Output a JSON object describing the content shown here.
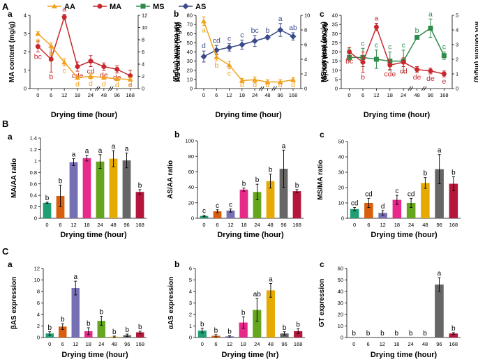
{
  "panel_labels": [
    "A",
    "B",
    "C"
  ],
  "colors": {
    "AA": "#f0a21e",
    "MA": "#c8282d",
    "MS": "#2e8b4a",
    "AS": "#3b4a8c"
  },
  "legend": [
    {
      "key": "AA",
      "label": "AA",
      "marker": "triangle"
    },
    {
      "key": "MA",
      "label": "MA",
      "marker": "circle"
    },
    {
      "key": "MS",
      "label": "MS",
      "marker": "square"
    },
    {
      "key": "AS",
      "label": "AS",
      "marker": "diamond"
    }
  ],
  "chart_data": [
    {
      "id": "A-a",
      "type": "line",
      "sub": "a",
      "x": [
        "0",
        "6",
        "12",
        "18",
        "24",
        "48",
        "96",
        "168"
      ],
      "xlabel": "Drying time (hour)",
      "ylabel": "MA content (mg/g)",
      "ylim": [
        0,
        4
      ],
      "yticks": [
        "0",
        "1",
        "2",
        "3",
        "4"
      ],
      "ylabel2": "AA content (mg/g)",
      "ylim2": [
        0,
        12
      ],
      "yticks2": [
        "0",
        "2",
        "4",
        "6",
        "8",
        "10",
        "12"
      ],
      "series": [
        {
          "name": "MA",
          "axis": "left",
          "values": [
            2.3,
            1.6,
            3.9,
            1.2,
            1.5,
            1.2,
            1.05,
            0.7
          ],
          "err": [
            0.3,
            0.7,
            0.15,
            0.25,
            0.3,
            0.2,
            0.2,
            0.3
          ],
          "labels": [
            "bc",
            "b",
            "a",
            "cde",
            "cd",
            "de",
            "de",
            "e"
          ]
        },
        {
          "name": "AA",
          "axis": "right",
          "values": [
            9.0,
            7.0,
            4.3,
            1.8,
            2.0,
            1.8,
            1.6,
            1.5
          ],
          "err": [
            0.3,
            0.5,
            0.6,
            0.3,
            0.4,
            0.3,
            0.3,
            0.3
          ],
          "labels": [
            "a",
            "b",
            "c",
            "d",
            "d",
            "d",
            "d",
            "d"
          ]
        }
      ]
    },
    {
      "id": "A-b",
      "type": "line",
      "sub": "b",
      "x": [
        "0",
        "6",
        "12",
        "18",
        "24",
        "48",
        "96",
        "168"
      ],
      "xlabel": "Drying time (hour)",
      "ylabel": "AS content (mg/g)",
      "ylim": [
        0,
        80
      ],
      "yticks": [
        "0",
        "10",
        "20",
        "30",
        "40",
        "50",
        "60",
        "70",
        "80"
      ],
      "ylabel2": "AA content (mg/g)",
      "ylim2": [
        0,
        10
      ],
      "yticks2": [
        "0",
        "2",
        "4",
        "6",
        "8",
        "10"
      ],
      "series": [
        {
          "name": "AS",
          "axis": "left",
          "values": [
            35,
            42,
            45,
            48,
            52,
            56,
            64,
            57
          ],
          "err": [
            6,
            5,
            4,
            5,
            6,
            2,
            7,
            4
          ],
          "labels": [
            "d",
            "cd",
            "c",
            "c",
            "bc",
            "b",
            "a",
            "ab"
          ]
        },
        {
          "name": "AA",
          "axis": "right",
          "values": [
            9.2,
            4.3,
            3.2,
            1.1,
            1.2,
            0.9,
            0.9,
            1.2
          ],
          "err": [
            0.6,
            0.5,
            0.5,
            0.3,
            0.4,
            0.3,
            0.3,
            0.3
          ],
          "labels": [
            "a",
            "b",
            "c",
            "d",
            "d",
            "d",
            "d",
            "d"
          ]
        }
      ]
    },
    {
      "id": "A-c",
      "type": "line",
      "sub": "c",
      "x": [
        "0",
        "6",
        "12",
        "18",
        "24",
        "48",
        "96",
        "168"
      ],
      "xlabel": "Drying time (hour)",
      "ylabel": "MS content (mg/g)",
      "ylim": [
        0,
        40
      ],
      "yticks": [
        "0",
        "5",
        "10",
        "15",
        "20",
        "25",
        "30",
        "35",
        "40"
      ],
      "ylabel2": "MA content (mg/g)",
      "ylim2": [
        0,
        5
      ],
      "yticks2": [
        "0",
        "1",
        "2",
        "3",
        "4",
        "5"
      ],
      "series": [
        {
          "name": "MS",
          "axis": "left",
          "values": [
            17,
            17,
            16,
            15,
            15,
            28,
            33,
            18
          ],
          "err": [
            2,
            5,
            5,
            5,
            6,
            1,
            5,
            2
          ],
          "labels": [
            "c",
            "c",
            "c",
            "c",
            "c",
            "b",
            "a",
            "c"
          ]
        },
        {
          "name": "MA",
          "axis": "right",
          "values": [
            2.5,
            1.8,
            4.2,
            1.6,
            1.8,
            1.3,
            1.2,
            1.0
          ],
          "err": [
            0.3,
            0.7,
            0.25,
            0.3,
            0.3,
            0.2,
            0.2,
            0.2
          ],
          "labels": [
            "bc",
            "b",
            "a",
            "cde",
            "cd",
            "de",
            "de",
            "e"
          ]
        }
      ]
    },
    {
      "id": "B-a",
      "type": "bar",
      "sub": "a",
      "categories": [
        "0",
        "6",
        "12",
        "18",
        "24",
        "48",
        "96",
        "168"
      ],
      "values": [
        0.27,
        0.39,
        0.98,
        1.05,
        0.99,
        1.04,
        1.01,
        0.46
      ],
      "err": [
        0.01,
        0.19,
        0.06,
        0.05,
        0.12,
        0.14,
        0.13,
        0.04
      ],
      "labels": [
        "b",
        "b",
        "a",
        "a",
        "a",
        "a",
        "a",
        "b"
      ],
      "xlabel": "Drying time (hour)",
      "ylabel": "MA/AA ratio",
      "ylim": [
        0,
        1.4
      ],
      "yticks": [
        "0",
        "0.2",
        "0.4",
        "0.6",
        "0.8",
        "1",
        "1.2",
        "1.4"
      ]
    },
    {
      "id": "B-b",
      "type": "bar",
      "sub": "b",
      "categories": [
        "0",
        "6",
        "12",
        "18",
        "24",
        "48",
        "96",
        "168"
      ],
      "values": [
        3,
        9,
        10,
        37,
        34,
        48,
        64,
        35
      ],
      "err": [
        1,
        2,
        2,
        2,
        10,
        9,
        24,
        2
      ],
      "labels": [
        "c",
        "c",
        "c",
        "b",
        "b",
        "b",
        "a",
        "b"
      ],
      "xlabel": "Drying time (hour)",
      "ylabel": "AS/AA ratio",
      "ylim": [
        0,
        100
      ],
      "yticks": [
        "0",
        "20",
        "40",
        "60",
        "80",
        "100"
      ]
    },
    {
      "id": "B-c",
      "type": "bar",
      "sub": "c",
      "categories": [
        "0",
        "6",
        "12",
        "18",
        "24",
        "48",
        "96",
        "168"
      ],
      "values": [
        6,
        10,
        3.5,
        12,
        10,
        23,
        32,
        22.5
      ],
      "err": [
        1,
        3,
        1.5,
        3,
        3,
        3.5,
        9.5,
        4.5
      ],
      "labels": [
        "cd",
        "cd",
        "d",
        "c",
        "cd",
        "b",
        "a",
        "b"
      ],
      "xlabel": "Drying time (hour)",
      "ylabel": "MS/MA ratio",
      "ylim": [
        0,
        50
      ],
      "yticks": [
        "0",
        "10",
        "20",
        "30",
        "40",
        "50"
      ]
    },
    {
      "id": "C-a",
      "type": "bar",
      "sub": "a",
      "categories": [
        "0",
        "6",
        "12",
        "18",
        "24",
        "48",
        "96",
        "168"
      ],
      "values": [
        0.7,
        1.9,
        8.6,
        1.1,
        2.9,
        0.15,
        0.4,
        0.9
      ],
      "err": [
        0.3,
        0.5,
        1.2,
        0.6,
        0.8,
        0.1,
        0.2,
        0.2
      ],
      "labels": [
        "b",
        "b",
        "a",
        "b",
        "b",
        "b",
        "b",
        "b"
      ],
      "xlabel": "Drying time (hour)",
      "ylabel": "βAS expression",
      "ylim": [
        0,
        12
      ],
      "yticks": [
        "0",
        "2",
        "4",
        "6",
        "8",
        "10",
        "12"
      ]
    },
    {
      "id": "C-b",
      "type": "bar",
      "sub": "b",
      "categories": [
        "0",
        "6",
        "12",
        "18",
        "24",
        "48",
        "96",
        "168"
      ],
      "values": [
        0.6,
        0.15,
        0.1,
        1.3,
        2.4,
        4.1,
        0.35,
        0.55
      ],
      "err": [
        0.2,
        0.1,
        0.05,
        0.5,
        1.0,
        0.6,
        0.15,
        0.2
      ],
      "labels": [
        "b",
        "b",
        "b",
        "b",
        "ab",
        "a",
        "b",
        "b"
      ],
      "xlabel": "Drying time (hr)",
      "ylabel": "αAS expression",
      "ylim": [
        0,
        6
      ],
      "yticks": [
        "0",
        "1",
        "2",
        "3",
        "4",
        "5",
        "6"
      ]
    },
    {
      "id": "C-c",
      "type": "bar",
      "sub": "c",
      "categories": [
        "0",
        "6",
        "12",
        "18",
        "24",
        "48",
        "96",
        "168"
      ],
      "values": [
        0,
        0,
        0,
        0,
        0,
        0,
        46,
        3.5
      ],
      "err": [
        0,
        0,
        0,
        0,
        0,
        0,
        6,
        0.8
      ],
      "labels": [
        "b",
        "b",
        "b",
        "b",
        "b",
        "b",
        "a",
        "b"
      ],
      "xlabel": "Drying time (hour)",
      "ylabel": "GT expression",
      "ylim": [
        0,
        60
      ],
      "yticks": [
        "0",
        "10",
        "20",
        "30",
        "40",
        "50",
        "60"
      ]
    }
  ],
  "bar_colors": [
    "#1f9e74",
    "#d95f0e",
    "#7570b3",
    "#e7298a",
    "#66a61e",
    "#e6ab02",
    "#666666",
    "#b5163b"
  ]
}
